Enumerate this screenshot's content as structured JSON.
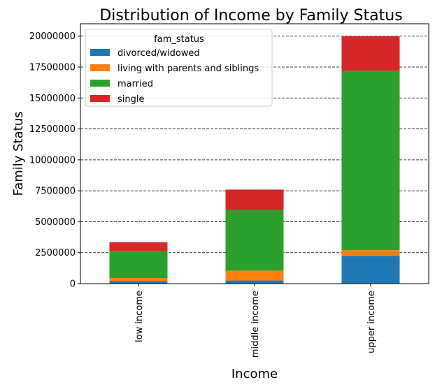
{
  "chart_data": {
    "type": "bar",
    "stacked": true,
    "title": "Distribution of Income by Family Status",
    "xlabel": "Income",
    "ylabel": "Family Status",
    "categories": [
      "low income",
      "middle income",
      "upper income"
    ],
    "series": [
      {
        "name": "divorced/widowed",
        "color": "#1f77b4",
        "values": [
          200000,
          250000,
          2250000
        ]
      },
      {
        "name": "living with parents and siblings",
        "color": "#ff7f0e",
        "values": [
          250000,
          800000,
          450000
        ]
      },
      {
        "name": "married",
        "color": "#2ca02c",
        "values": [
          2200000,
          4900000,
          14500000
        ]
      },
      {
        "name": "single",
        "color": "#d62728",
        "values": [
          700000,
          1650000,
          2800000
        ]
      }
    ],
    "ylim": [
      0,
      21000000
    ],
    "yticks": [
      0,
      2500000,
      5000000,
      7500000,
      10000000,
      12500000,
      15000000,
      17500000,
      20000000
    ],
    "ytick_labels": [
      "0",
      "2500000",
      "5000000",
      "7500000",
      "10000000",
      "12500000",
      "15000000",
      "17500000",
      "20000000"
    ],
    "grid": "y-dashed",
    "legend": {
      "title": "fam_status",
      "placement": "top-left"
    }
  }
}
